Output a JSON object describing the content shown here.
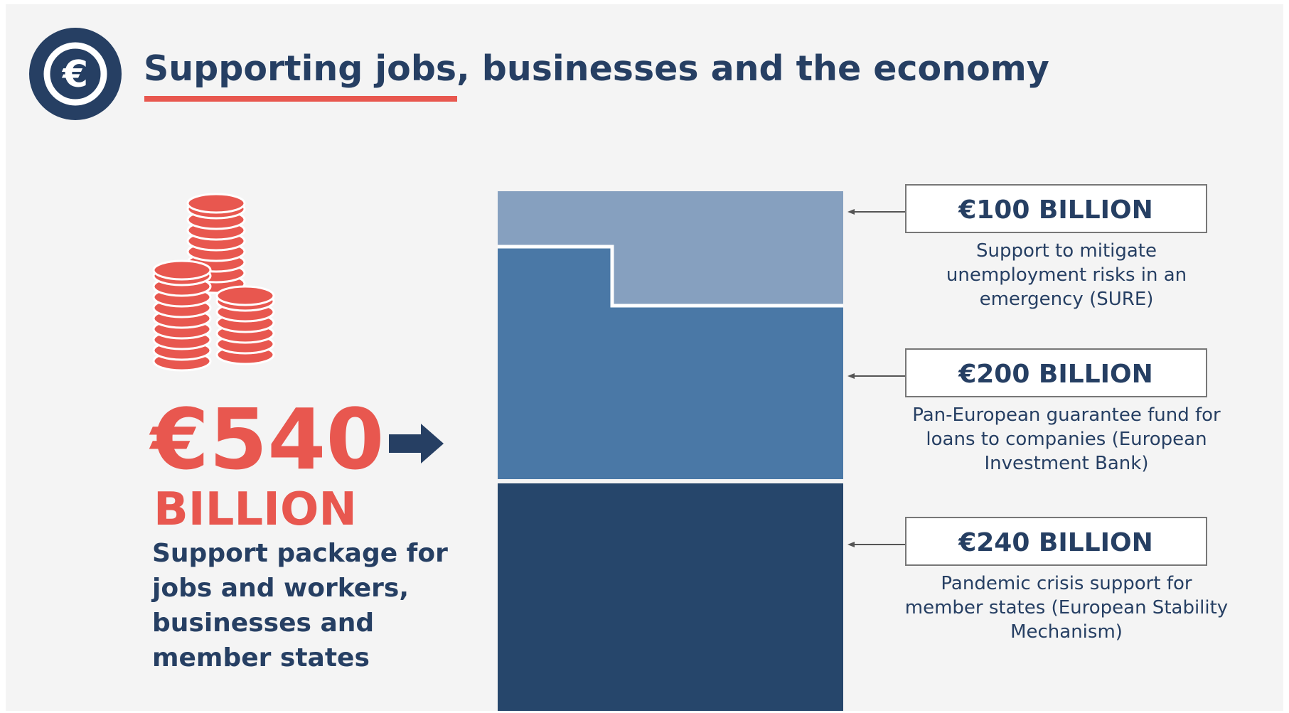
{
  "header": {
    "title": "Supporting jobs, businesses and the economy"
  },
  "summary": {
    "amount": "€540",
    "unit": "BILLION",
    "description": [
      "Support package for",
      "jobs and workers,",
      "businesses and",
      "member states"
    ]
  },
  "components": [
    {
      "amount": "€100 BILLION",
      "description": [
        "Support to mitigate",
        "unemployment risks in an",
        "emergency (SURE)"
      ]
    },
    {
      "amount": "€200 BILLION",
      "description": [
        "Pan-European guarantee fund for",
        "loans to companies (European",
        "Investment Bank)"
      ]
    },
    {
      "amount": "€240 BILLION",
      "description": [
        "Pandemic crisis support for",
        "member states (European Stability",
        "Mechanism)"
      ]
    }
  ]
}
